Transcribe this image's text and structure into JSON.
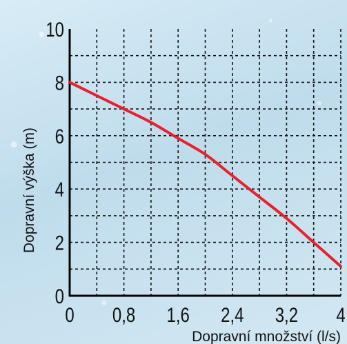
{
  "chart_data": {
    "type": "line",
    "xlabel": "Dopravní množství (l/s)",
    "ylabel": "Dopravní výška (m)",
    "xlim": [
      0,
      4
    ],
    "ylim": [
      0,
      10
    ],
    "x_ticks": [
      "0",
      "0,8",
      "1,6",
      "2,4",
      "3,2",
      "4"
    ],
    "y_ticks": [
      "0",
      "2",
      "4",
      "6",
      "8",
      "10"
    ],
    "grid": true,
    "series": [
      {
        "color": "#e8202a",
        "x": [
          0,
          0.4,
          0.8,
          1.2,
          1.6,
          2.0,
          2.4,
          2.8,
          3.2,
          3.6,
          4.0
        ],
        "y": [
          8.0,
          7.5,
          7.0,
          6.5,
          5.9,
          5.3,
          4.5,
          3.7,
          2.9,
          2.0,
          1.1
        ]
      }
    ]
  }
}
